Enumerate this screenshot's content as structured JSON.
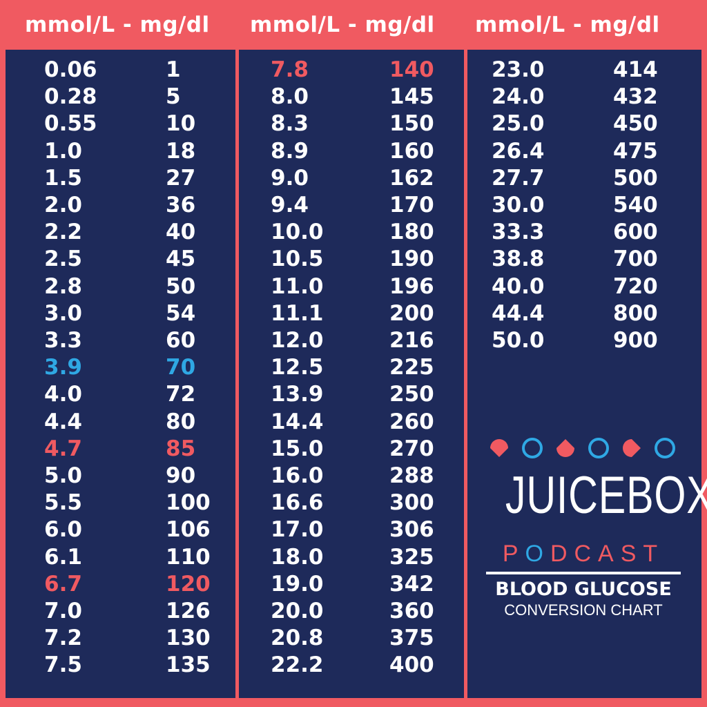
{
  "headers": [
    "mmol/L - mg/dl",
    "mmol/L - mg/dl",
    "mmol/L - mg/dl"
  ],
  "colors": {
    "background": "#f05a61",
    "panel": "#1e2a5a",
    "text": "#ffffff",
    "low": "#2fa8e4",
    "target": "#f05a61"
  },
  "columns": [
    [
      {
        "mmol": "0.06",
        "mgdl": "1"
      },
      {
        "mmol": "0.28",
        "mgdl": "5"
      },
      {
        "mmol": "0.55",
        "mgdl": "10"
      },
      {
        "mmol": "1.0",
        "mgdl": "18"
      },
      {
        "mmol": "1.5",
        "mgdl": "27"
      },
      {
        "mmol": "2.0",
        "mgdl": "36"
      },
      {
        "mmol": "2.2",
        "mgdl": "40"
      },
      {
        "mmol": "2.5",
        "mgdl": "45"
      },
      {
        "mmol": "2.8",
        "mgdl": "50"
      },
      {
        "mmol": "3.0",
        "mgdl": "54"
      },
      {
        "mmol": "3.3",
        "mgdl": "60"
      },
      {
        "mmol": "3.9",
        "mgdl": "70",
        "highlight": "blue"
      },
      {
        "mmol": "4.0",
        "mgdl": "72"
      },
      {
        "mmol": "4.4",
        "mgdl": "80"
      },
      {
        "mmol": "4.7",
        "mgdl": "85",
        "highlight": "red"
      },
      {
        "mmol": "5.0",
        "mgdl": "90"
      },
      {
        "mmol": "5.5",
        "mgdl": "100"
      },
      {
        "mmol": "6.0",
        "mgdl": "106"
      },
      {
        "mmol": "6.1",
        "mgdl": "110"
      },
      {
        "mmol": "6.7",
        "mgdl": "120",
        "highlight": "red"
      },
      {
        "mmol": "7.0",
        "mgdl": "126"
      },
      {
        "mmol": "7.2",
        "mgdl": "130"
      },
      {
        "mmol": "7.5",
        "mgdl": "135"
      }
    ],
    [
      {
        "mmol": "7.8",
        "mgdl": "140",
        "highlight": "red"
      },
      {
        "mmol": "8.0",
        "mgdl": "145"
      },
      {
        "mmol": "8.3",
        "mgdl": "150"
      },
      {
        "mmol": "8.9",
        "mgdl": "160"
      },
      {
        "mmol": "9.0",
        "mgdl": "162"
      },
      {
        "mmol": "9.4",
        "mgdl": "170"
      },
      {
        "mmol": "10.0",
        "mgdl": "180"
      },
      {
        "mmol": "10.5",
        "mgdl": "190"
      },
      {
        "mmol": "11.0",
        "mgdl": "196"
      },
      {
        "mmol": "11.1",
        "mgdl": "200"
      },
      {
        "mmol": "12.0",
        "mgdl": "216"
      },
      {
        "mmol": "12.5",
        "mgdl": "225"
      },
      {
        "mmol": "13.9",
        "mgdl": "250"
      },
      {
        "mmol": "14.4",
        "mgdl": "260"
      },
      {
        "mmol": "15.0",
        "mgdl": "270"
      },
      {
        "mmol": "16.0",
        "mgdl": "288"
      },
      {
        "mmol": "16.6",
        "mgdl": "300"
      },
      {
        "mmol": "17.0",
        "mgdl": "306"
      },
      {
        "mmol": "18.0",
        "mgdl": "325"
      },
      {
        "mmol": "19.0",
        "mgdl": "342"
      },
      {
        "mmol": "20.0",
        "mgdl": "360"
      },
      {
        "mmol": "20.8",
        "mgdl": "375"
      },
      {
        "mmol": "22.2",
        "mgdl": "400"
      }
    ],
    [
      {
        "mmol": "23.0",
        "mgdl": "414"
      },
      {
        "mmol": "24.0",
        "mgdl": "432"
      },
      {
        "mmol": "25.0",
        "mgdl": "450"
      },
      {
        "mmol": "26.4",
        "mgdl": "475"
      },
      {
        "mmol": "27.7",
        "mgdl": "500"
      },
      {
        "mmol": "30.0",
        "mgdl": "540"
      },
      {
        "mmol": "33.3",
        "mgdl": "600"
      },
      {
        "mmol": "38.8",
        "mgdl": "700"
      },
      {
        "mmol": "40.0",
        "mgdl": "720"
      },
      {
        "mmol": "44.4",
        "mgdl": "800"
      },
      {
        "mmol": "50.0",
        "mgdl": "900"
      }
    ]
  ],
  "logo": {
    "icons": [
      "drop-icon",
      "circle-icon",
      "drop-icon",
      "circle-icon",
      "drop-icon",
      "circle-icon"
    ],
    "brand_title": "JUICEBOX",
    "brand_sub_pre": "P",
    "brand_sub_o": "O",
    "brand_sub_post": "DCAST",
    "chart_title": "BLOOD GLUCOSE",
    "chart_subtitle": "CONVERSION CHART"
  }
}
